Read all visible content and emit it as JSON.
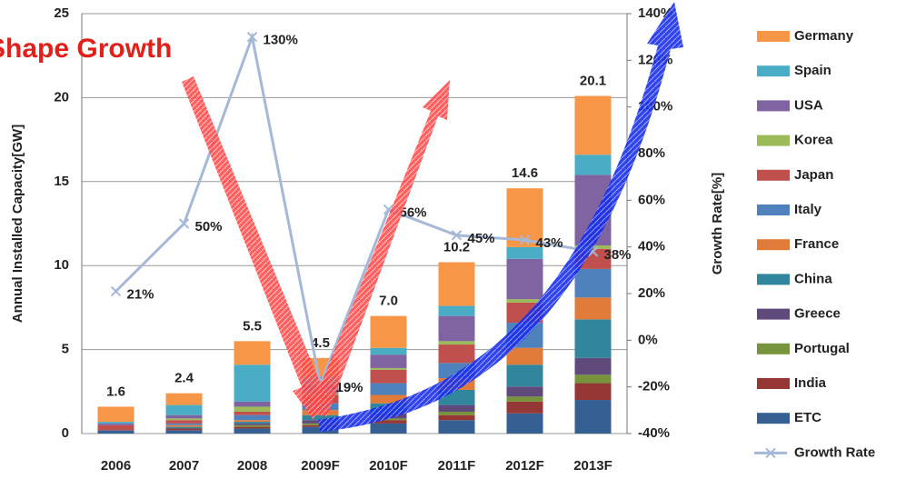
{
  "chart_data": {
    "type": "bar",
    "annotation": "Shape Growth",
    "y_label": "Annual Installed Capacity[GW]",
    "y2_label": "Growth Rate[%]",
    "categories": [
      "2006",
      "2007",
      "2008",
      "2009F",
      "2010F",
      "2011F",
      "2012F",
      "2013F"
    ],
    "totals": [
      1.6,
      2.4,
      5.5,
      4.5,
      7.0,
      10.2,
      14.6,
      20.1
    ],
    "total_labels": [
      "1.6",
      "2.4",
      "5.5",
      "4.5",
      "7.0",
      "10.2",
      "14.6",
      "20.1"
    ],
    "series": [
      {
        "name": "Germany",
        "color": "#f79646",
        "values": [
          0.9,
          0.7,
          1.4,
          1.1,
          1.9,
          2.6,
          3.5,
          3.5
        ]
      },
      {
        "name": "Spain",
        "color": "#4bacc6",
        "values": [
          0.1,
          0.6,
          2.2,
          0.5,
          0.4,
          0.6,
          0.7,
          1.2
        ]
      },
      {
        "name": "USA",
        "color": "#8064a2",
        "values": [
          0.1,
          0.2,
          0.3,
          0.5,
          0.8,
          1.5,
          2.4,
          4.2
        ]
      },
      {
        "name": "Korea",
        "color": "#9bbb59",
        "values": [
          0,
          0.1,
          0.3,
          0.1,
          0.1,
          0.2,
          0.2,
          0.2
        ]
      },
      {
        "name": "Japan",
        "color": "#c0504d",
        "values": [
          0.3,
          0.2,
          0.2,
          0.5,
          0.8,
          1.1,
          1.2,
          1.2
        ]
      },
      {
        "name": "Italy",
        "color": "#4f81bd",
        "values": [
          0,
          0.1,
          0.3,
          0.4,
          0.7,
          0.9,
          1.5,
          1.7
        ]
      },
      {
        "name": "France",
        "color": "#e07b39",
        "values": [
          0,
          0.1,
          0.1,
          0.3,
          0.5,
          0.7,
          1.0,
          1.3
        ]
      },
      {
        "name": "China",
        "color": "#31859c",
        "values": [
          0,
          0.1,
          0.1,
          0.3,
          0.6,
          0.9,
          1.3,
          2.3
        ]
      },
      {
        "name": "Greece",
        "color": "#604a7b",
        "values": [
          0,
          0,
          0.1,
          0.2,
          0.3,
          0.4,
          0.6,
          1.0
        ]
      },
      {
        "name": "Portugal",
        "color": "#77933c",
        "values": [
          0,
          0,
          0.1,
          0.1,
          0.1,
          0.2,
          0.3,
          0.5
        ]
      },
      {
        "name": "India",
        "color": "#953735",
        "values": [
          0,
          0.1,
          0.1,
          0.1,
          0.2,
          0.3,
          0.7,
          1.0
        ]
      },
      {
        "name": "ETC",
        "color": "#376092",
        "values": [
          0.2,
          0.2,
          0.3,
          0.4,
          0.6,
          0.8,
          1.2,
          2.0
        ]
      },
      {
        "name": "Growth Rate",
        "type": "line",
        "axis": "y2",
        "color": "#a6b8d8",
        "values": [
          21,
          50,
          130,
          -19,
          56,
          45,
          43,
          38
        ],
        "value_labels": [
          "21%",
          "50%",
          "130%",
          "-19%",
          "56%",
          "45%",
          "43%",
          "38%"
        ]
      }
    ],
    "ylim": [
      0,
      25
    ],
    "yticks": [
      0,
      5,
      10,
      15,
      20,
      25
    ],
    "y2lim": [
      -40,
      140
    ],
    "y2ticks": [
      {
        "value": -40,
        "label": "-40%"
      },
      {
        "value": -20,
        "label": "-20%"
      },
      {
        "value": 0,
        "label": "0%"
      },
      {
        "value": 20,
        "label": "20%"
      },
      {
        "value": 40,
        "label": "40%"
      },
      {
        "value": 60,
        "label": "60%"
      },
      {
        "value": 80,
        "label": "80%"
      },
      {
        "value": 100,
        "label": "100%"
      },
      {
        "value": 120,
        "label": "120%"
      },
      {
        "value": 140,
        "label": "140%"
      }
    ],
    "grid": true
  }
}
